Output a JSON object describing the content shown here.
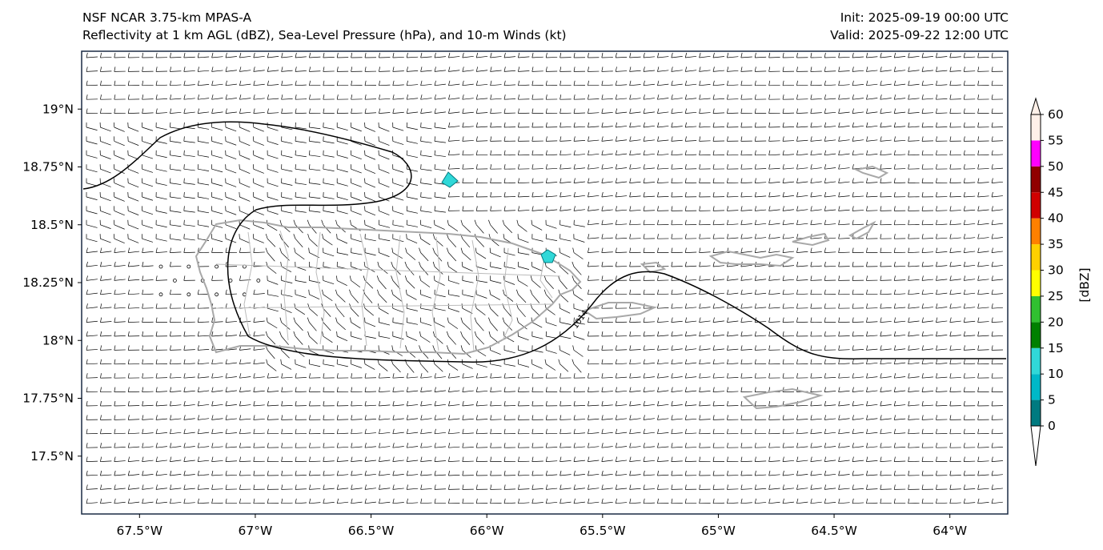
{
  "header": {
    "title_left_1": "NSF NCAR 3.75-km MPAS-A",
    "title_left_2": "Reflectivity at 1 km AGL (dBZ), Sea-Level Pressure (hPa), and 10-m Winds (kt)",
    "title_right_1": "Init: 2025-09-19 00:00 UTC",
    "title_right_2": "Valid: 2025-09-22 12:00 UTC"
  },
  "map": {
    "lon_range": [
      -67.75,
      -63.75
    ],
    "lat_range": [
      17.25,
      19.25
    ],
    "x_ticks": [
      "67.5°W",
      "67°W",
      "66.5°W",
      "66°W",
      "65.5°W",
      "65°W",
      "64.5°W",
      "64°W"
    ],
    "y_ticks": [
      "19°N",
      "18.75°N",
      "18.5°N",
      "18.25°N",
      "18°N",
      "17.75°N",
      "17.5°N"
    ],
    "isobar_label": "1014",
    "ocean_color": "#dce8f5",
    "coast_color": "#a8a8a8",
    "isobar_color": "#000000",
    "barb_color": "#000000",
    "wind_description_icon": "wind-barb-icon"
  },
  "colorbar": {
    "label": "[dBZ]",
    "ticks": [
      "0",
      "5",
      "10",
      "15",
      "20",
      "25",
      "30",
      "35",
      "40",
      "45",
      "50",
      "55",
      "60"
    ],
    "colors": [
      "#007a80",
      "#00b8c8",
      "#30d8d8",
      "#008000",
      "#30c030",
      "#ffff00",
      "#ffd000",
      "#ff8000",
      "#d00000",
      "#900000",
      "#ff00ff",
      "#fff0e8"
    ]
  }
}
